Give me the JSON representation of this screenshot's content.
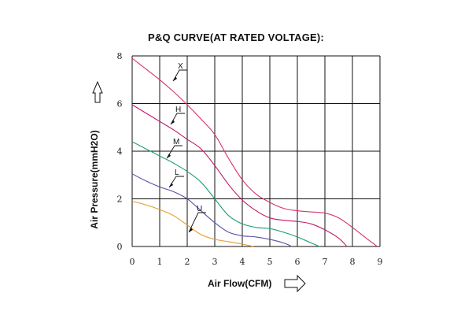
{
  "title": "P&Q CURVE(AT RATED VOLTAGE):",
  "chart_data": {
    "type": "line",
    "title": "P&Q CURVE(AT RATED VOLTAGE):",
    "xlabel": "Air Flow(CFM)",
    "ylabel": "Air Pressure(mmH2O)",
    "xlim": [
      0,
      9
    ],
    "ylim": [
      0,
      8
    ],
    "x_ticks": [
      "0",
      "1",
      "2",
      "3",
      "4",
      "5",
      "6",
      "7",
      "8",
      "9"
    ],
    "y_ticks": [
      "0",
      "2",
      "4",
      "6",
      "8"
    ],
    "grid": true,
    "series": [
      {
        "name": "X",
        "color": "#d6336c",
        "points": [
          [
            0,
            7.9
          ],
          [
            0.5,
            7.45
          ],
          [
            1,
            7.0
          ],
          [
            1.5,
            6.5
          ],
          [
            2,
            5.95
          ],
          [
            2.5,
            5.35
          ],
          [
            3,
            4.7
          ],
          [
            3.5,
            3.7
          ],
          [
            4,
            2.8
          ],
          [
            4.5,
            2.2
          ],
          [
            5,
            1.85
          ],
          [
            5.5,
            1.6
          ],
          [
            6,
            1.5
          ],
          [
            6.5,
            1.45
          ],
          [
            7,
            1.4
          ],
          [
            7.5,
            1.2
          ],
          [
            8,
            0.8
          ],
          [
            8.5,
            0.35
          ],
          [
            8.9,
            0
          ]
        ]
      },
      {
        "name": "H",
        "color": "#c2186b",
        "points": [
          [
            0,
            5.95
          ],
          [
            0.5,
            5.6
          ],
          [
            1,
            5.25
          ],
          [
            1.5,
            4.9
          ],
          [
            2,
            4.5
          ],
          [
            2.5,
            4.1
          ],
          [
            3,
            3.4
          ],
          [
            3.5,
            2.6
          ],
          [
            4,
            1.95
          ],
          [
            4.5,
            1.5
          ],
          [
            5,
            1.2
          ],
          [
            5.5,
            1.1
          ],
          [
            6,
            1.05
          ],
          [
            6.5,
            0.95
          ],
          [
            7,
            0.7
          ],
          [
            7.5,
            0.35
          ],
          [
            7.8,
            0
          ]
        ]
      },
      {
        "name": "M",
        "color": "#1b9e77",
        "points": [
          [
            0,
            4.4
          ],
          [
            0.5,
            4.1
          ],
          [
            1,
            3.8
          ],
          [
            1.5,
            3.5
          ],
          [
            2,
            3.15
          ],
          [
            2.5,
            2.7
          ],
          [
            3,
            2.0
          ],
          [
            3.5,
            1.3
          ],
          [
            4,
            0.95
          ],
          [
            4.5,
            0.8
          ],
          [
            5,
            0.75
          ],
          [
            5.5,
            0.6
          ],
          [
            6,
            0.4
          ],
          [
            6.5,
            0.15
          ],
          [
            6.8,
            0
          ]
        ]
      },
      {
        "name": "L",
        "color": "#5b4ba8",
        "points": [
          [
            0,
            3.05
          ],
          [
            0.5,
            2.75
          ],
          [
            1,
            2.5
          ],
          [
            1.5,
            2.3
          ],
          [
            2,
            2.0
          ],
          [
            2.5,
            1.5
          ],
          [
            3,
            1.0
          ],
          [
            3.5,
            0.6
          ],
          [
            4,
            0.45
          ],
          [
            4.5,
            0.4
          ],
          [
            5,
            0.3
          ],
          [
            5.5,
            0.15
          ],
          [
            5.8,
            0
          ]
        ]
      },
      {
        "name": "U",
        "color": "#e69a2e",
        "points": [
          [
            0,
            1.9
          ],
          [
            0.5,
            1.75
          ],
          [
            1,
            1.55
          ],
          [
            1.5,
            1.3
          ],
          [
            2,
            0.9
          ],
          [
            2.5,
            0.5
          ],
          [
            3,
            0.3
          ],
          [
            3.5,
            0.2
          ],
          [
            4,
            0.1
          ],
          [
            4.4,
            0
          ]
        ]
      }
    ],
    "labels": [
      {
        "text": "X",
        "series": "X"
      },
      {
        "text": "H",
        "series": "H"
      },
      {
        "text": "M",
        "series": "M"
      },
      {
        "text": "L",
        "series": "L"
      },
      {
        "text": "U",
        "series": "U"
      }
    ]
  }
}
